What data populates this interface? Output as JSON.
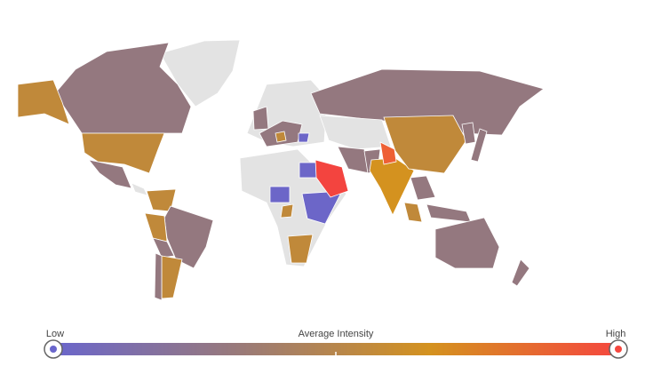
{
  "legend": {
    "title": "Average Intensity",
    "low": "Low",
    "high": "High",
    "colors": [
      "#6a66cc",
      "#9a7a78",
      "#d4921f",
      "#f5473f"
    ]
  }
}
